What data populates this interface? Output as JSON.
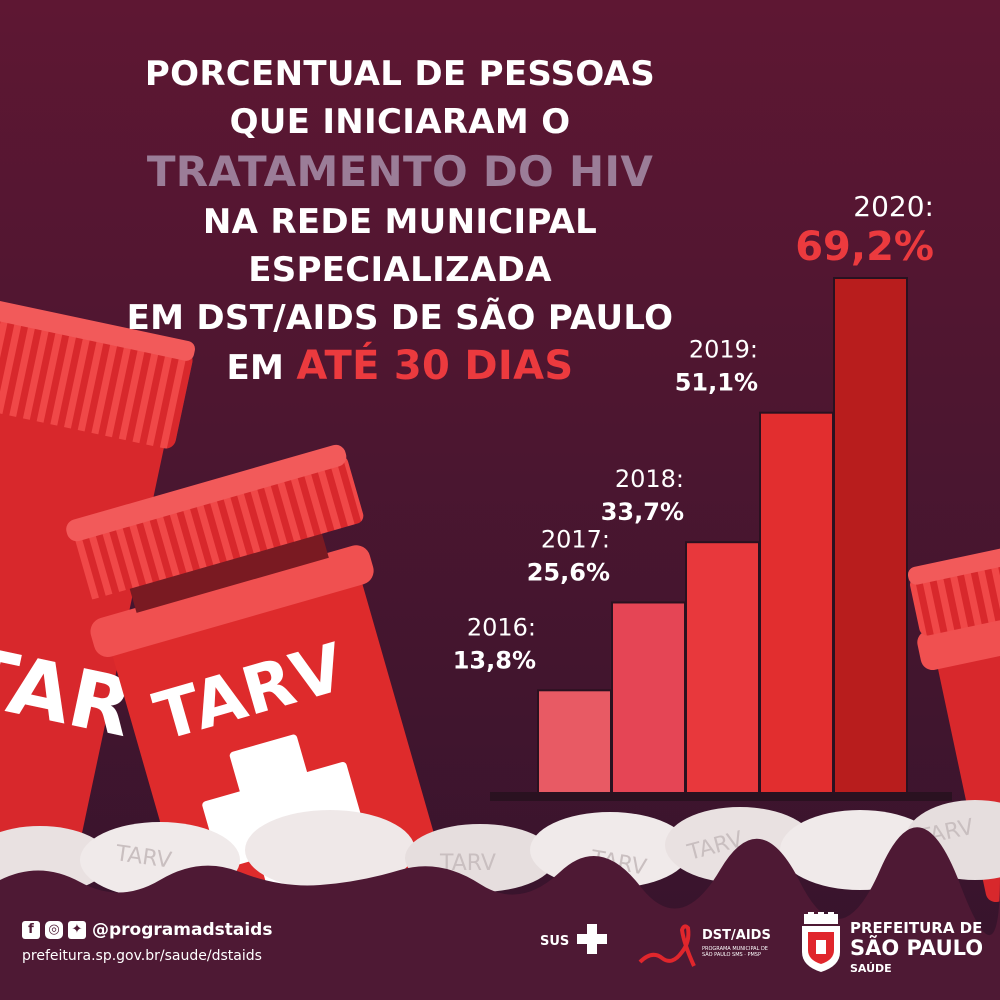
{
  "headline": {
    "line1": "PORCENTUAL DE PESSOAS",
    "line2": "QUE INICIARAM O",
    "line3": "TRATAMENTO DO HIV",
    "line4": "NA REDE MUNICIPAL",
    "line5": "ESPECIALIZADA",
    "line6": "EM DST/AIDS DE SÃO PAULO",
    "line7_prefix": "EM",
    "line7_highlight": "ATÉ 30 DIAS"
  },
  "illustration": {
    "bottle_label": "TARV",
    "pebble_label": "TARV"
  },
  "colors": {
    "background_top": "#5e1733",
    "background_bottom": "#35142c",
    "accent_red": "#ec3a3e",
    "accent_purple": "#9b7d98",
    "bar_colors": [
      "#e85a64",
      "#e54555",
      "#e8383c",
      "#e22e2f",
      "#b81d1d"
    ]
  },
  "chart_data": {
    "type": "bar",
    "title": "PORCENTUAL DE PESSOAS QUE INICIARAM O TRATAMENTO DO HIV NA REDE MUNICIPAL ESPECIALIZADA EM DST/AIDS DE SÃO PAULO EM ATÉ 30 DIAS",
    "categories": [
      "2016",
      "2017",
      "2018",
      "2019",
      "2020"
    ],
    "year_labels": [
      "2016:",
      "2017:",
      "2018:",
      "2019:",
      "2020:"
    ],
    "values": [
      13.8,
      25.6,
      33.7,
      51.1,
      69.2
    ],
    "value_labels": [
      "13,8%",
      "25,6%",
      "33,7%",
      "51,1%",
      "69,2%"
    ],
    "ylim": [
      0,
      69.2
    ],
    "xlabel": "",
    "ylabel": "",
    "grid": false,
    "unit": "%"
  },
  "footer": {
    "social_icons": [
      "facebook-icon",
      "instagram-icon",
      "twitter-icon"
    ],
    "handle": "@programadstaids",
    "website": "prefeitura.sp.gov.br/saude/dstaids",
    "sus_logo_text": "SUS",
    "dstaids_logo_title": "DST/AIDS",
    "dstaids_logo_subtitle": "PROGRAMA MUNICIPAL DE SÃO PAULO SMS · PMSP",
    "city_logo_line1": "PREFEITURA DE",
    "city_logo_line2": "SÃO PAULO",
    "city_logo_line3": "SAÚDE"
  }
}
